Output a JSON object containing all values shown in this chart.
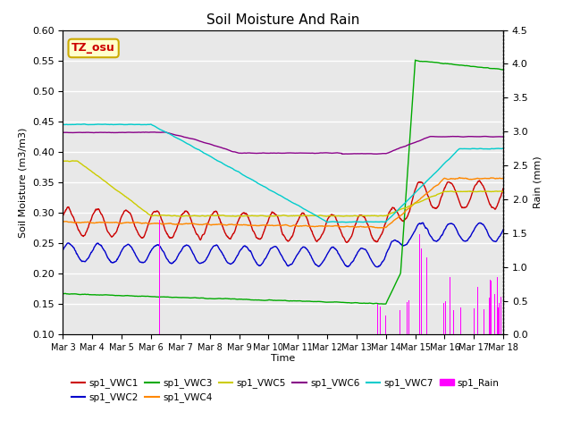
{
  "title": "Soil Moisture And Rain",
  "xlabel": "Time",
  "ylabel_left": "Soil Moisture (m3/m3)",
  "ylabel_right": "Rain (mm)",
  "ylim_left": [
    0.1,
    0.6
  ],
  "ylim_right": [
    0.0,
    4.5
  ],
  "yticks_left": [
    0.1,
    0.15,
    0.2,
    0.25,
    0.3,
    0.35,
    0.4,
    0.45,
    0.5,
    0.55,
    0.6
  ],
  "yticks_right": [
    0.0,
    0.5,
    1.0,
    1.5,
    2.0,
    2.5,
    3.0,
    3.5,
    4.0,
    4.5
  ],
  "xtick_labels": [
    "Mar 3",
    "Mar 4",
    "Mar 5",
    "Mar 6",
    "Mar 7",
    "Mar 8",
    "Mar 9",
    "Mar 10",
    "Mar 11",
    "Mar 12",
    "Mar 13",
    "Mar 14",
    "Mar 15",
    "Mar 16",
    "Mar 17",
    "Mar 18"
  ],
  "station_label": "TZ_osu",
  "station_label_color": "#cc0000",
  "station_box_edge": "#ccaa00",
  "station_box_face": "#ffffcc",
  "bg_color": "#e8e8e8",
  "grid_color": "#ffffff",
  "series_colors": {
    "VWC1": "#cc0000",
    "VWC2": "#0000cc",
    "VWC3": "#00aa00",
    "VWC4": "#ff8800",
    "VWC5": "#cccc00",
    "VWC6": "#880088",
    "VWC7": "#00cccc",
    "Rain": "#ff00ff"
  },
  "legend_labels": [
    "sp1_VWC1",
    "sp1_VWC2",
    "sp1_VWC3",
    "sp1_VWC4",
    "sp1_VWC5",
    "sp1_VWC6",
    "sp1_VWC7",
    "sp1_Rain"
  ]
}
